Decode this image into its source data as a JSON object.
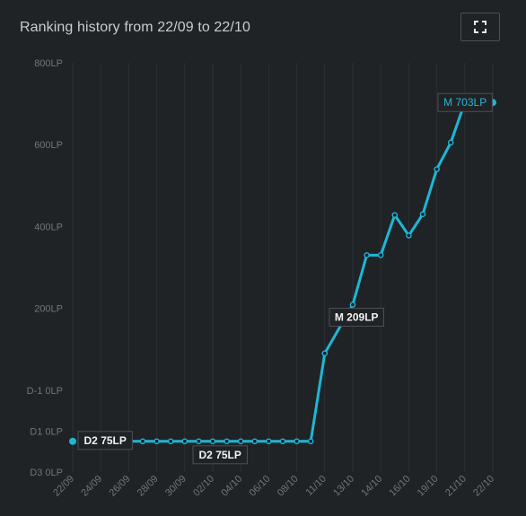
{
  "header": {
    "title": "Ranking history from 22/09 to 22/10",
    "fullscreen_icon": "expand-icon"
  },
  "colors": {
    "background": "#1f2326",
    "line": "#1fb6d6",
    "grid": "#2b3034",
    "tick_text": "#6f767c"
  },
  "chart_data": {
    "type": "line",
    "title": "Ranking history from 22/09 to 22/10",
    "xlabel": "",
    "ylabel": "",
    "y_scale": "rank ladder; each tick label is a rank, 100 units per division",
    "ylim": [
      -200,
      800
    ],
    "y_ticks": [
      {
        "value": 800,
        "label": "800LP"
      },
      {
        "value": 600,
        "label": "600LP"
      },
      {
        "value": 400,
        "label": "400LP"
      },
      {
        "value": 200,
        "label": "200LP"
      },
      {
        "value": 0,
        "label": "D-1 0LP"
      },
      {
        "value": -100,
        "label": "D1 0LP"
      },
      {
        "value": -200,
        "label": "D3 0LP"
      }
    ],
    "x_tick_labels": [
      "22/09",
      "24/09",
      "26/09",
      "28/09",
      "30/09",
      "02/10",
      "04/10",
      "06/10",
      "08/10",
      "11/10",
      "13/10",
      "14/10",
      "16/10",
      "19/10",
      "21/10",
      "22/10"
    ],
    "points": [
      {
        "x": 0,
        "y": -125
      },
      {
        "x": 4,
        "y": -125
      },
      {
        "x": 5,
        "y": -125
      },
      {
        "x": 6,
        "y": -125
      },
      {
        "x": 7,
        "y": -125
      },
      {
        "x": 8,
        "y": -125
      },
      {
        "x": 9,
        "y": -125
      },
      {
        "x": 10,
        "y": -125
      },
      {
        "x": 11,
        "y": -125
      },
      {
        "x": 12,
        "y": -125
      },
      {
        "x": 13,
        "y": -125
      },
      {
        "x": 14,
        "y": -125
      },
      {
        "x": 15,
        "y": -125
      },
      {
        "x": 16,
        "y": -125
      },
      {
        "x": 17,
        "y": -125
      },
      {
        "x": 18,
        "y": 90
      },
      {
        "x": 20,
        "y": 209
      },
      {
        "x": 21,
        "y": 330
      },
      {
        "x": 22,
        "y": 330
      },
      {
        "x": 23,
        "y": 428
      },
      {
        "x": 24,
        "y": 378
      },
      {
        "x": 25,
        "y": 430
      },
      {
        "x": 26,
        "y": 540
      },
      {
        "x": 27,
        "y": 605
      },
      {
        "x": 28,
        "y": 703
      },
      {
        "x": 30,
        "y": 703
      }
    ],
    "annotations": [
      {
        "label": "D2 75LP",
        "x": 0,
        "y": -125
      },
      {
        "label": "D2 75LP",
        "x": 10,
        "y": -125
      },
      {
        "label": "M 209LP",
        "x": 20,
        "y": 209
      },
      {
        "label": "M 703LP",
        "x": 30,
        "y": 703
      }
    ],
    "grid": "vertical only",
    "legend": "none"
  }
}
